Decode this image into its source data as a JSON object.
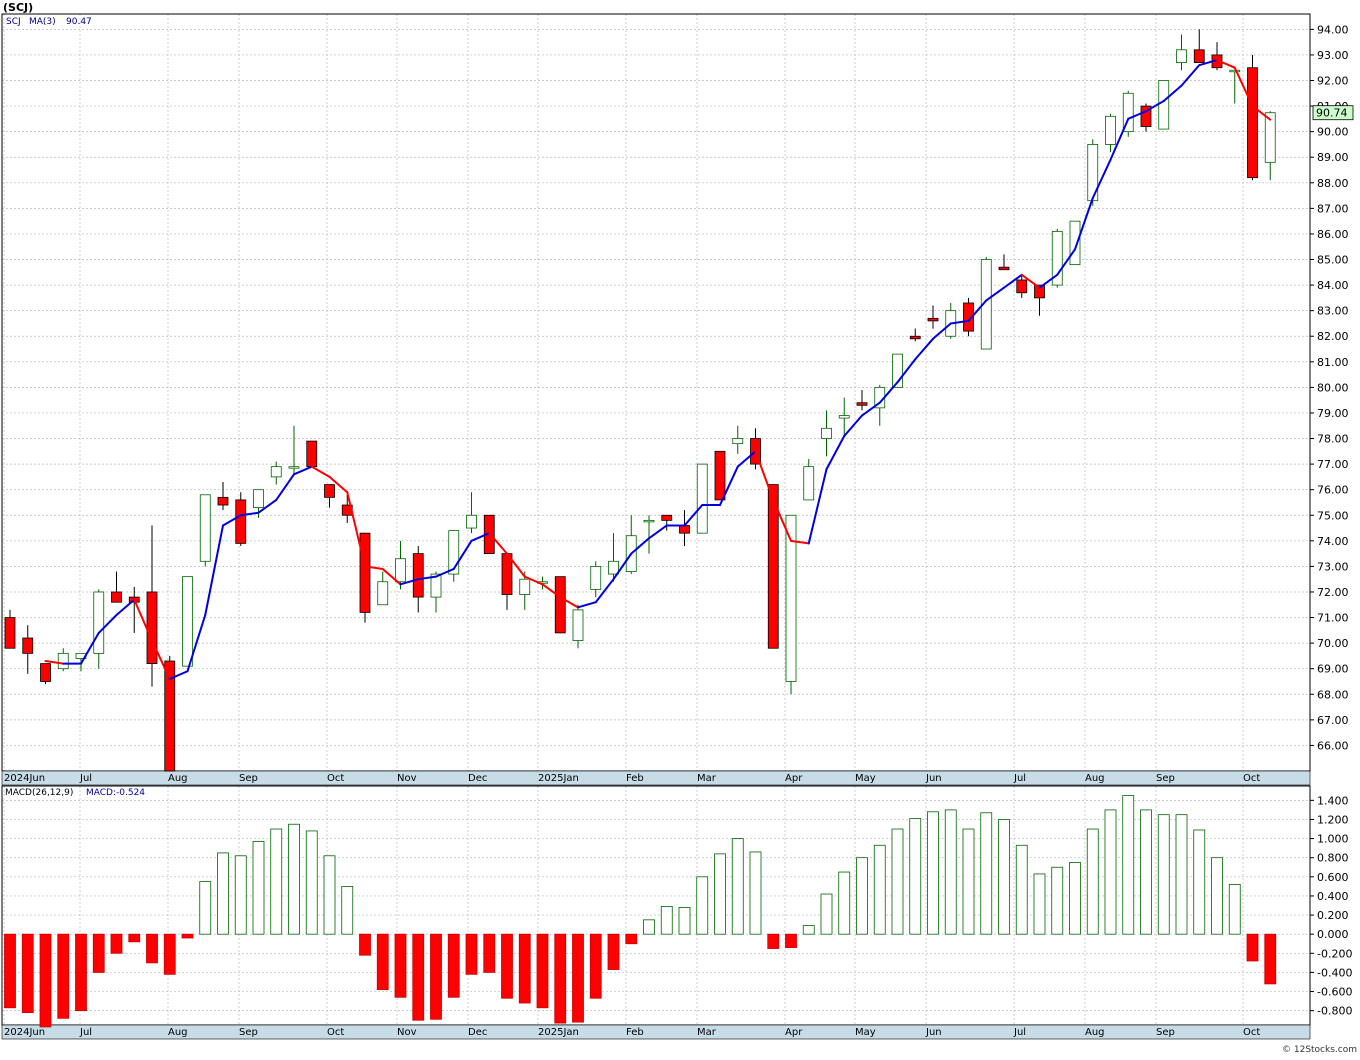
{
  "header": {
    "title": "(SCJ)"
  },
  "price_legend": {
    "symbol": "SCJ",
    "ma_label": "MA(3)",
    "ma_value": "90.47",
    "last_price": "90.74"
  },
  "macd_legend": {
    "label": "MACD(26,12,9)",
    "value_label": "MACD:-0.524"
  },
  "footer": {
    "copyright": "© 12Stocks.com"
  },
  "colors": {
    "up_body": "#ffffff",
    "up_line": "#006400",
    "down_body": "#ff0000",
    "ma_up": "#0000dd",
    "ma_down": "#ff0000",
    "price_box_fill": "#ccffcc",
    "grid": "#bbbbbb",
    "axis_bar": "#c8dce8"
  },
  "chart_data": [
    {
      "type": "candlestick",
      "interval": "weekly",
      "x_month_labels": [
        "2024Jun",
        "Jul",
        "Aug",
        "Sep",
        "Oct",
        "Nov",
        "Dec",
        "2025Jan",
        "Feb",
        "Mar",
        "Apr",
        "May",
        "Jun",
        "Jul",
        "Aug",
        "Sep",
        "Oct"
      ],
      "y_ticks": [
        "94.00",
        "93.00",
        "92.00",
        "91.00",
        "90.00",
        "89.00",
        "88.00",
        "87.00",
        "86.00",
        "85.00",
        "84.00",
        "83.00",
        "82.00",
        "81.00",
        "80.00",
        "79.00",
        "78.00",
        "77.00",
        "76.00",
        "75.00",
        "74.00",
        "73.00",
        "72.00",
        "71.00",
        "70.00",
        "69.00",
        "68.00",
        "67.00",
        "66.00"
      ],
      "ylim": [
        65,
        94.6
      ],
      "ohlc": [
        [
          71.0,
          71.3,
          69.8,
          69.8
        ],
        [
          70.2,
          70.7,
          68.8,
          69.6
        ],
        [
          69.2,
          69.2,
          68.4,
          68.5
        ],
        [
          69.0,
          69.8,
          68.9,
          69.6
        ],
        [
          69.4,
          69.6,
          68.9,
          69.6
        ],
        [
          69.6,
          72.1,
          69.0,
          72.0
        ],
        [
          72.0,
          72.8,
          71.6,
          71.6
        ],
        [
          71.8,
          72.2,
          70.4,
          71.6
        ],
        [
          72.0,
          74.6,
          68.3,
          69.2
        ],
        [
          69.3,
          69.5,
          65.0,
          65.0
        ],
        [
          69.1,
          72.6,
          69.1,
          72.6
        ],
        [
          73.2,
          75.8,
          73.0,
          75.8
        ],
        [
          75.7,
          76.3,
          75.2,
          75.4
        ],
        [
          75.6,
          75.9,
          73.8,
          73.9
        ],
        [
          75.3,
          76.0,
          74.9,
          76.0
        ],
        [
          76.5,
          77.1,
          76.2,
          76.9
        ],
        [
          76.9,
          78.5,
          76.6,
          76.9
        ],
        [
          77.9,
          77.9,
          76.9,
          76.9
        ],
        [
          76.2,
          76.2,
          75.3,
          75.7
        ],
        [
          75.4,
          75.8,
          74.7,
          75.0
        ],
        [
          74.3,
          74.3,
          70.8,
          71.2
        ],
        [
          71.5,
          72.8,
          71.5,
          72.4
        ],
        [
          72.4,
          74.0,
          72.1,
          73.3
        ],
        [
          73.5,
          73.8,
          71.2,
          71.8
        ],
        [
          71.8,
          72.8,
          71.2,
          72.7
        ],
        [
          72.7,
          74.4,
          72.4,
          74.4
        ],
        [
          74.5,
          75.9,
          74.3,
          75.0
        ],
        [
          75.0,
          75.0,
          73.6,
          73.5
        ],
        [
          73.5,
          73.5,
          71.3,
          71.9
        ],
        [
          71.9,
          72.8,
          71.3,
          72.5
        ],
        [
          72.4,
          72.6,
          72.1,
          72.4
        ],
        [
          72.6,
          72.6,
          70.4,
          70.4
        ],
        [
          70.1,
          71.5,
          69.8,
          71.3
        ],
        [
          72.1,
          73.2,
          71.8,
          73.0
        ],
        [
          72.7,
          74.3,
          72.4,
          73.2
        ],
        [
          72.8,
          75.0,
          72.7,
          74.2
        ],
        [
          74.8,
          75.0,
          73.5,
          74.8
        ],
        [
          75.0,
          75.0,
          74.4,
          74.8
        ],
        [
          74.6,
          75.2,
          73.8,
          74.3
        ],
        [
          74.3,
          77.0,
          74.3,
          77.0
        ],
        [
          77.5,
          77.5,
          75.6,
          75.6
        ],
        [
          77.8,
          78.5,
          77.4,
          78.0
        ],
        [
          78.0,
          78.4,
          76.8,
          77.0
        ],
        [
          76.2,
          76.2,
          69.8,
          69.8
        ],
        [
          68.5,
          75.0,
          68.0,
          75.0
        ],
        [
          75.6,
          77.2,
          75.6,
          76.9
        ],
        [
          78.0,
          79.1,
          77.3,
          78.4
        ],
        [
          78.8,
          79.6,
          78.1,
          78.9
        ],
        [
          79.4,
          79.9,
          79.1,
          79.3
        ],
        [
          79.2,
          80.1,
          78.5,
          80.0
        ],
        [
          80.0,
          81.3,
          80.0,
          81.3
        ],
        [
          82.0,
          82.3,
          81.8,
          81.9
        ],
        [
          82.7,
          83.2,
          82.3,
          82.6
        ],
        [
          82.0,
          83.3,
          81.9,
          83.0
        ],
        [
          83.3,
          83.5,
          82.0,
          82.2
        ],
        [
          81.5,
          85.1,
          81.5,
          85.0
        ],
        [
          84.7,
          85.2,
          84.6,
          84.6
        ],
        [
          84.2,
          84.4,
          83.5,
          83.7
        ],
        [
          84.0,
          84.0,
          82.8,
          83.5
        ],
        [
          84.0,
          86.2,
          83.9,
          86.1
        ],
        [
          84.8,
          86.5,
          84.8,
          86.5
        ],
        [
          87.3,
          89.7,
          87.1,
          89.5
        ],
        [
          89.5,
          90.7,
          89.2,
          90.6
        ],
        [
          90.0,
          91.6,
          89.8,
          91.5
        ],
        [
          91.0,
          91.1,
          90.0,
          90.2
        ],
        [
          90.1,
          92.0,
          90.1,
          92.0
        ],
        [
          92.7,
          93.8,
          92.4,
          93.2
        ],
        [
          93.2,
          94.0,
          92.8,
          92.7
        ],
        [
          93.0,
          93.5,
          92.4,
          92.5
        ],
        [
          92.4,
          92.4,
          91.1,
          92.4
        ],
        [
          92.5,
          93.0,
          88.1,
          88.2
        ],
        [
          88.8,
          90.8,
          88.1,
          90.74
        ]
      ],
      "ma3": [
        null,
        null,
        69.3,
        69.2,
        69.2,
        70.4,
        71.1,
        71.7,
        70.1,
        68.6,
        68.9,
        71.1,
        74.6,
        75.0,
        75.1,
        75.6,
        76.6,
        76.9,
        76.5,
        75.9,
        73.0,
        72.9,
        72.3,
        72.5,
        72.6,
        72.9,
        74.0,
        74.3,
        73.5,
        72.6,
        72.3,
        71.8,
        71.4,
        71.6,
        72.5,
        73.5,
        74.1,
        74.6,
        74.6,
        75.4,
        75.4,
        76.9,
        77.5,
        75.6,
        74.0,
        73.9,
        76.8,
        78.1,
        78.9,
        79.4,
        80.2,
        81.1,
        81.9,
        82.5,
        82.6,
        83.4,
        83.9,
        84.4,
        83.9,
        84.4,
        85.4,
        87.4,
        88.9,
        90.5,
        90.8,
        91.2,
        91.8,
        92.6,
        92.8,
        92.5,
        91.0,
        90.47
      ],
      "ma3_last": "90.47",
      "last_price": "90.74"
    },
    {
      "type": "bar",
      "name": "MACD(26,12,9)",
      "y_ticks": [
        "1.400",
        "1.200",
        "1.000",
        "0.800",
        "0.600",
        "0.400",
        "0.200",
        "0.000",
        "-0.200",
        "-0.400",
        "-0.600",
        "-0.800"
      ],
      "ylim": [
        -0.95,
        1.55
      ],
      "values": [
        -0.77,
        -0.82,
        -0.97,
        -0.88,
        -0.8,
        -0.4,
        -0.2,
        -0.08,
        -0.3,
        -0.42,
        -0.04,
        0.55,
        0.85,
        0.82,
        0.97,
        1.1,
        1.15,
        1.08,
        0.82,
        0.5,
        -0.22,
        -0.58,
        -0.66,
        -0.9,
        -0.89,
        -0.66,
        -0.42,
        -0.4,
        -0.67,
        -0.72,
        -0.77,
        -0.93,
        -0.92,
        -0.67,
        -0.37,
        -0.1,
        0.15,
        0.29,
        0.28,
        0.6,
        0.84,
        1.0,
        0.86,
        -0.15,
        -0.14,
        0.09,
        0.42,
        0.65,
        0.8,
        0.93,
        1.1,
        1.21,
        1.28,
        1.3,
        1.1,
        1.27,
        1.2,
        0.93,
        0.63,
        0.7,
        0.75,
        1.1,
        1.3,
        1.45,
        1.3,
        1.25,
        1.25,
        1.09,
        0.8,
        0.52,
        -0.28,
        -0.52
      ],
      "value_label": "MACD:-0.524"
    }
  ]
}
